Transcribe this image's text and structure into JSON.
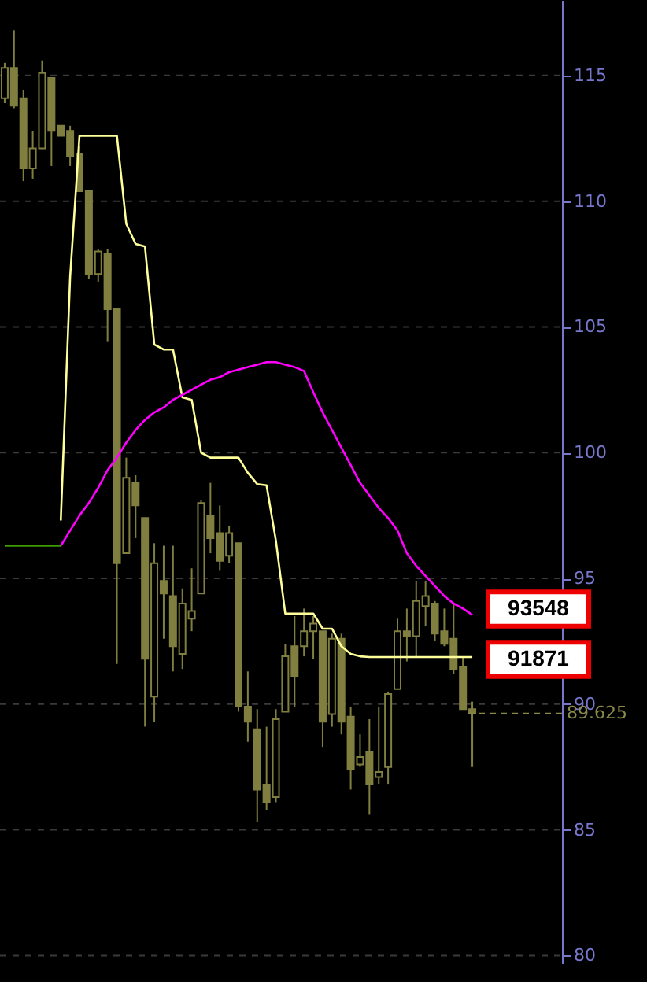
{
  "chart_data": {
    "type": "candlestick",
    "color": "#807f40",
    "categories": [
      null,
      null,
      null,
      null,
      null,
      null,
      null,
      null,
      null,
      null,
      null,
      null,
      null,
      null,
      null,
      null,
      null,
      null,
      null,
      null,
      null,
      null,
      null,
      null,
      null,
      null,
      null,
      null,
      null,
      null,
      null,
      null,
      null,
      null,
      null,
      null,
      null,
      null,
      null,
      null,
      null,
      null,
      null,
      null,
      null,
      null,
      null,
      null,
      null,
      null,
      null
    ],
    "ohlc": [
      [
        114.1,
        115.5,
        113.9,
        115.3
      ],
      [
        115.3,
        116.8,
        113.7,
        113.8
      ],
      [
        114.1,
        114.4,
        110.8,
        111.3
      ],
      [
        111.3,
        112.8,
        110.9,
        112.1
      ],
      [
        112.1,
        115.6,
        112.1,
        115.1
      ],
      [
        114.9,
        114.9,
        111.4,
        112.8
      ],
      [
        113.0,
        113.0,
        112.6,
        112.6
      ],
      [
        112.8,
        113.0,
        111.4,
        111.8
      ],
      [
        111.9,
        112.2,
        110.4,
        110.4
      ],
      [
        110.4,
        110.4,
        106.9,
        107.1
      ],
      [
        107.1,
        108.1,
        106.8,
        108.0
      ],
      [
        107.9,
        108.1,
        104.4,
        105.7
      ],
      [
        105.7,
        105.7,
        91.6,
        95.6
      ],
      [
        96.0,
        99.8,
        96.0,
        99.0
      ],
      [
        98.8,
        99.1,
        96.6,
        97.9
      ],
      [
        97.4,
        97.4,
        89.1,
        91.8
      ],
      [
        90.3,
        96.4,
        89.3,
        95.6
      ],
      [
        94.9,
        96.3,
        92.6,
        94.4
      ],
      [
        94.3,
        96.3,
        91.3,
        92.3
      ],
      [
        92.0,
        94.6,
        91.4,
        94.0
      ],
      [
        93.4,
        95.4,
        92.9,
        93.7
      ],
      [
        94.4,
        98.1,
        94.4,
        98.0
      ],
      [
        97.5,
        98.8,
        96.0,
        96.6
      ],
      [
        96.8,
        97.9,
        95.3,
        95.7
      ],
      [
        95.9,
        97.1,
        95.6,
        96.8
      ],
      [
        96.4,
        96.4,
        89.7,
        89.9
      ],
      [
        89.9,
        91.3,
        88.5,
        89.3
      ],
      [
        89.0,
        89.8,
        85.3,
        86.6
      ],
      [
        86.8,
        89.1,
        85.8,
        86.1
      ],
      [
        86.3,
        89.8,
        86.1,
        89.4
      ],
      [
        89.7,
        92.4,
        89.7,
        91.9
      ],
      [
        92.3,
        93.5,
        89.9,
        91.1
      ],
      [
        92.3,
        93.8,
        91.9,
        92.9
      ],
      [
        92.9,
        93.5,
        91.8,
        93.2
      ],
      [
        92.9,
        92.9,
        88.3,
        89.3
      ],
      [
        89.6,
        92.8,
        89.1,
        92.6
      ],
      [
        92.6,
        92.8,
        88.8,
        89.3
      ],
      [
        89.5,
        89.9,
        86.6,
        87.4
      ],
      [
        87.6,
        88.8,
        87.5,
        87.9
      ],
      [
        88.1,
        89.4,
        85.6,
        86.8
      ],
      [
        87.1,
        89.9,
        86.8,
        87.3
      ],
      [
        87.5,
        90.5,
        86.8,
        90.4
      ],
      [
        90.6,
        93.4,
        90.6,
        92.9
      ],
      [
        92.9,
        93.8,
        91.7,
        92.7
      ],
      [
        92.7,
        94.9,
        91.9,
        94.1
      ],
      [
        93.9,
        94.9,
        93.1,
        94.3
      ],
      [
        94.0,
        94.1,
        92.5,
        92.8
      ],
      [
        92.9,
        93.8,
        92.3,
        92.4
      ],
      [
        92.6,
        94.0,
        91.2,
        91.4
      ],
      [
        91.5,
        91.9,
        89.8,
        89.8
      ],
      [
        89.8,
        90.1,
        87.5,
        89.625
      ]
    ],
    "series": [
      {
        "type": "line",
        "color": "#ffff99",
        "values": [
          null,
          null,
          null,
          null,
          null,
          null,
          97.3,
          107.0,
          112.6,
          112.6,
          112.6,
          112.6,
          112.6,
          109.1,
          108.3,
          108.2,
          104.3,
          104.1,
          104.1,
          102.2,
          102.1,
          100.0,
          99.8,
          99.8,
          99.8,
          99.8,
          99.2,
          98.75,
          98.7,
          96.5,
          93.6,
          93.6,
          93.6,
          93.6,
          93.0,
          93.0,
          92.3,
          92.0,
          91.9,
          91.87,
          91.87,
          91.87,
          91.87,
          91.87,
          91.87,
          91.87,
          91.87,
          91.87,
          91.87,
          91.87,
          91.87
        ]
      },
      {
        "type": "line",
        "color": "#ff00ff",
        "values": [
          null,
          null,
          null,
          null,
          null,
          null,
          96.3,
          96.9,
          97.5,
          98.0,
          98.6,
          99.3,
          99.8,
          100.4,
          100.9,
          101.3,
          101.6,
          101.8,
          102.1,
          102.3,
          102.5,
          102.7,
          102.9,
          103.0,
          103.2,
          103.3,
          103.4,
          103.5,
          103.6,
          103.6,
          103.5,
          103.4,
          103.25,
          102.4,
          101.6,
          100.9,
          100.2,
          99.5,
          98.8,
          98.3,
          97.8,
          97.4,
          96.9,
          96.0,
          95.5,
          95.1,
          94.7,
          94.3,
          94.0,
          93.8,
          93.55
        ]
      },
      {
        "type": "line",
        "color": "#3c9c00",
        "values": [
          96.3,
          96.3,
          96.3,
          96.3,
          96.3,
          96.3,
          96.3,
          null,
          null,
          null,
          null,
          null,
          null,
          null,
          null,
          null,
          null,
          null,
          null,
          null,
          null,
          null,
          null,
          null,
          null,
          null,
          null,
          null,
          null,
          null,
          null,
          null,
          null,
          null,
          null,
          null,
          null,
          null,
          null,
          null,
          null,
          null,
          null,
          null,
          null,
          null,
          null,
          null,
          null,
          null,
          null
        ]
      }
    ],
    "ylim": [
      79.7,
      118
    ],
    "yticks": [
      80,
      85,
      90,
      95,
      100,
      105,
      110,
      115
    ],
    "grid": "y",
    "tick_labels": "y",
    "ref_lines": [
      {
        "axis": "y",
        "value": 89.625,
        "label": "89.625",
        "color": "#8a8a4a",
        "line_style": "dashed"
      }
    ],
    "annotations": [
      "93548",
      "91871"
    ]
  }
}
